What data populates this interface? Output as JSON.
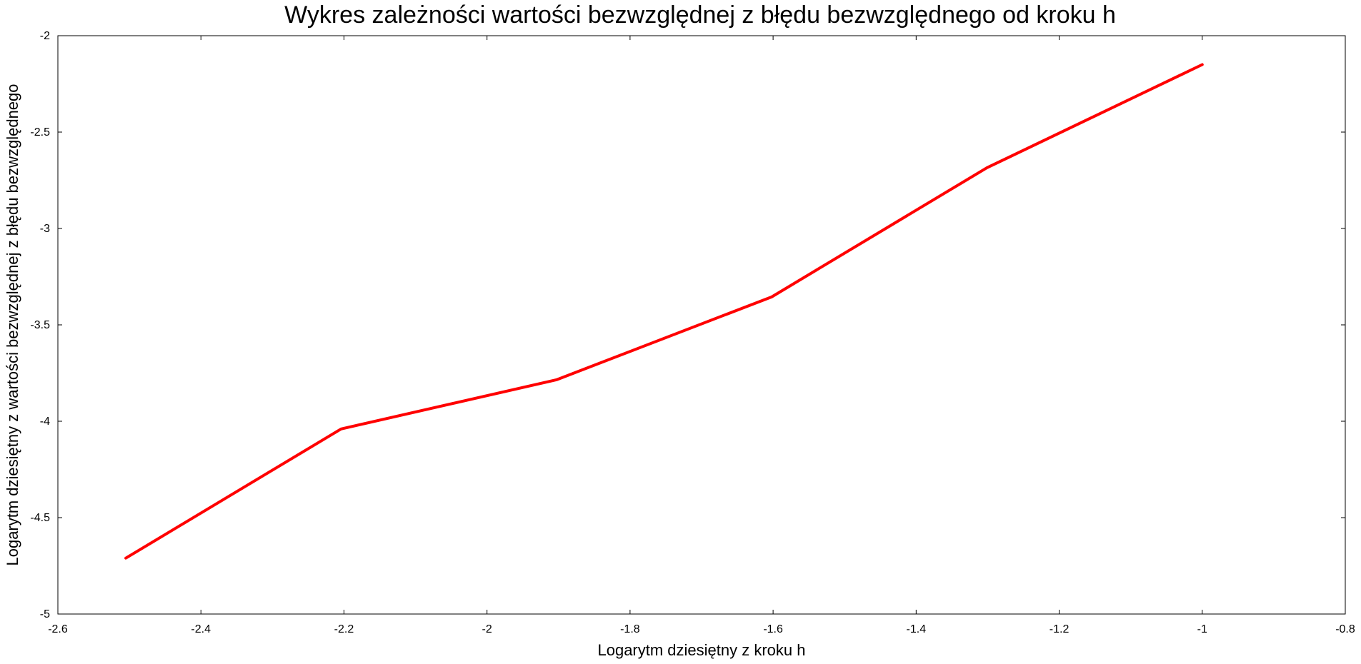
{
  "chart_data": {
    "type": "line",
    "title": "Wykres zależności wartości bezwzględnej z błędu bezwzględnego od kroku h",
    "xlabel": "Logarytm dziesiętny z kroku h",
    "ylabel": "Logarytm dziesiętny z wartości bezwzględnej z błędu bezwzględnego",
    "xlim": [
      -2.6,
      -0.8
    ],
    "ylim": [
      -5,
      -2
    ],
    "xticks": [
      -2.6,
      -2.4,
      -2.2,
      -2.0,
      -1.8,
      -1.6,
      -1.4,
      -1.2,
      -1.0,
      -0.8
    ],
    "xtick_labels": [
      "-2.6",
      "-2.4",
      "-2.2",
      "-2",
      "-1.8",
      "-1.6",
      "-1.4",
      "-1.2",
      "-1",
      "-0.8"
    ],
    "yticks": [
      -2.0,
      -2.5,
      -3.0,
      -3.5,
      -4.0,
      -4.5,
      -5.0
    ],
    "ytick_labels": [
      "-2",
      "-2.5",
      "-3",
      "-3.5",
      "-4",
      "-4.5",
      "-5"
    ],
    "grid": false,
    "legend": "none",
    "series": [
      {
        "color": "#ff0000",
        "x": [
          -2.505,
          -2.204,
          -1.903,
          -1.602,
          -1.301,
          -1.0
        ],
        "y": [
          -4.71,
          -4.04,
          -3.785,
          -3.355,
          -2.685,
          -2.15
        ]
      }
    ]
  }
}
